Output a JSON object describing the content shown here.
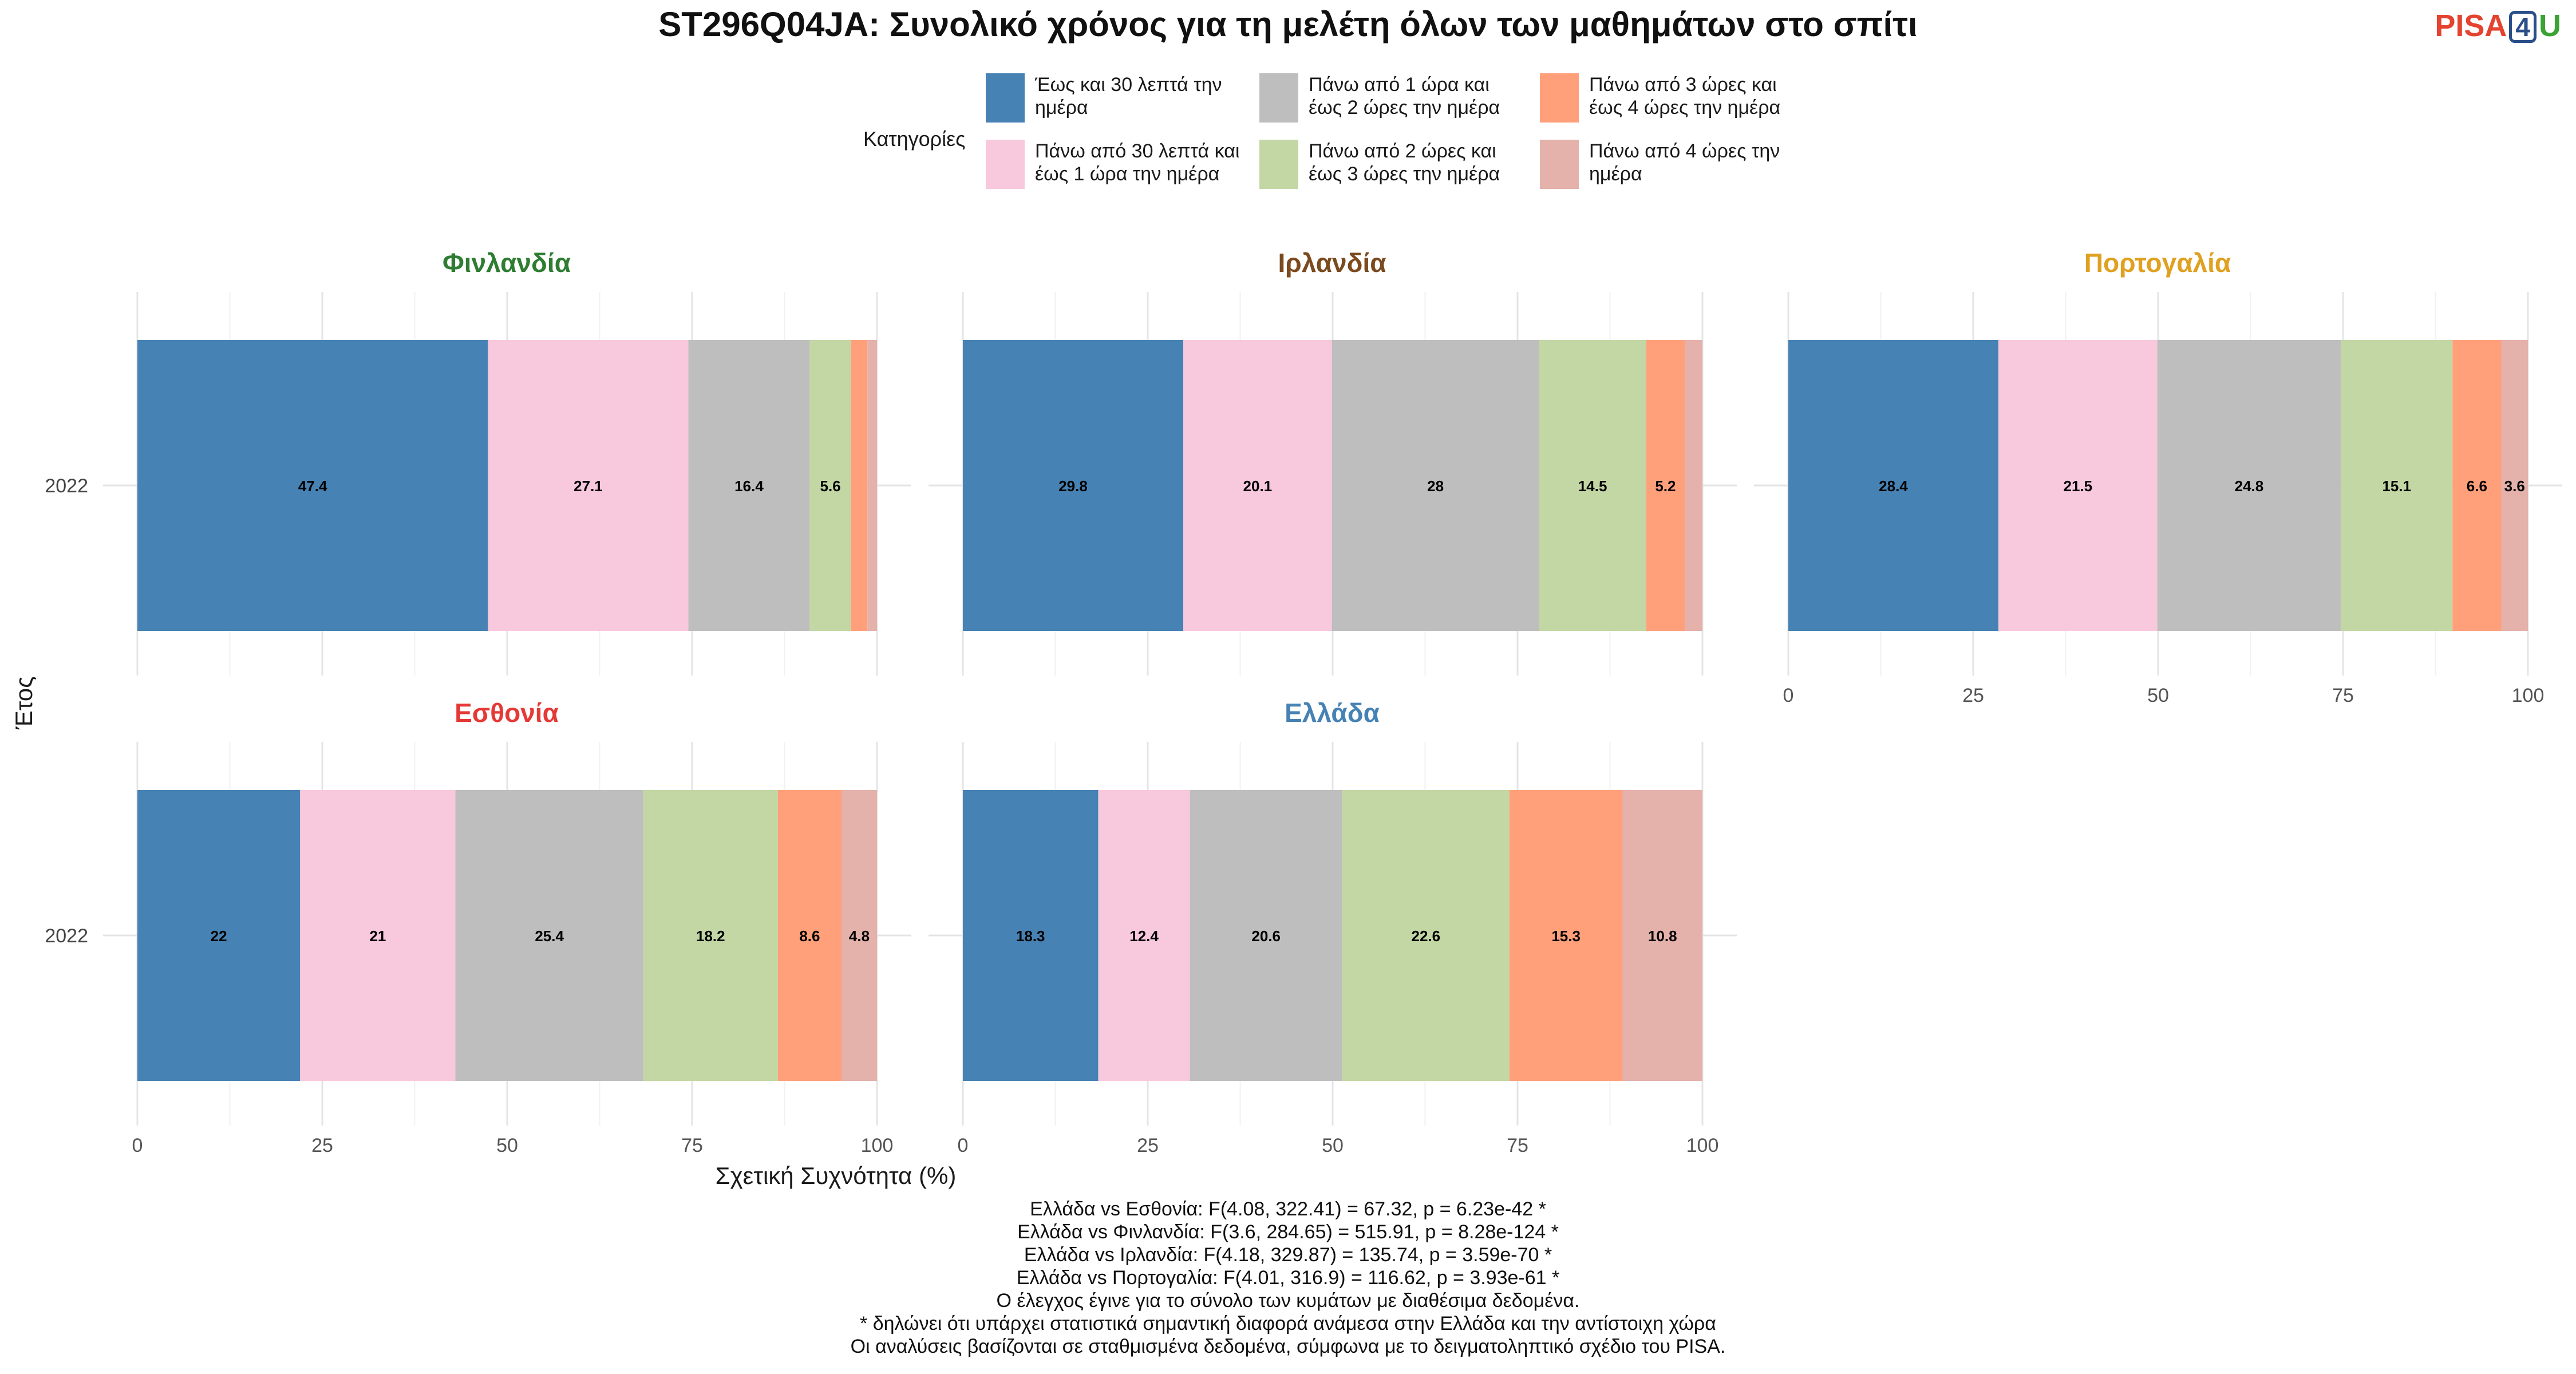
{
  "title": "ST296Q04JA: Συνολικό χρόνος για τη μελέτη όλων των μαθημάτων στο σπίτι",
  "logo": {
    "part1": "PISA",
    "part2": "4",
    "part3": "U"
  },
  "legend": {
    "title": "Κατηγορίες",
    "items": [
      {
        "label": "Έως και 30 λεπτά την ημέρα",
        "color": "#4682B4"
      },
      {
        "label": "Πάνω από 30 λεπτά και έως 1 ώρα την ημέρα",
        "color": "#F8C8DC"
      },
      {
        "label": "Πάνω από 1 ώρα και έως 2 ώρες την ημέρα",
        "color": "#BEBEBE"
      },
      {
        "label": "Πάνω από 2 ώρες και έως 3 ώρες την ημέρα",
        "color": "#C3D7A4"
      },
      {
        "label": "Πάνω από 3 ώρες και έως 4 ώρες την ημέρα",
        "color": "#FFA07A"
      },
      {
        "label": "Πάνω από 4 ώρες την ημέρα",
        "color": "#E4B1AB"
      }
    ]
  },
  "chart_data": {
    "type": "bar",
    "orientation": "horizontal",
    "stacked": true,
    "ylabel": "Έτος",
    "xlabel": "Σχετική Συχνότητα (%)",
    "xlim": [
      0,
      100
    ],
    "xticks": [
      "0",
      "25",
      "50",
      "75",
      "100"
    ],
    "grid": true,
    "legend_position": "top",
    "panels": [
      {
        "country": "Φινλανδία",
        "title_color": "#2E7D32",
        "year": "2022",
        "values": [
          47.4,
          27.1,
          16.4,
          5.6,
          2.2,
          1.3
        ],
        "labels": [
          "47.4",
          "27.1",
          "16.4",
          "5.6",
          "",
          ""
        ]
      },
      {
        "country": "Ιρλανδία",
        "title_color": "#7B4A1E",
        "year": "2022",
        "values": [
          29.8,
          20.1,
          28,
          14.5,
          5.2,
          2.4
        ],
        "labels": [
          "29.8",
          "20.1",
          "28",
          "14.5",
          "5.2",
          ""
        ]
      },
      {
        "country": "Πορτογαλία",
        "title_color": "#E0A020",
        "year": "2022",
        "values": [
          28.4,
          21.5,
          24.8,
          15.1,
          6.6,
          3.6
        ],
        "labels": [
          "28.4",
          "21.5",
          "24.8",
          "15.1",
          "6.6",
          "3.6"
        ]
      },
      {
        "country": "Εσθονία",
        "title_color": "#E53935",
        "year": "2022",
        "values": [
          22,
          21,
          25.4,
          18.2,
          8.6,
          4.8
        ],
        "labels": [
          "22",
          "21",
          "25.4",
          "18.2",
          "8.6",
          "4.8"
        ]
      },
      {
        "country": "Ελλάδα",
        "title_color": "#4682B4",
        "year": "2022",
        "values": [
          18.3,
          12.4,
          20.6,
          22.6,
          15.3,
          10.8
        ],
        "labels": [
          "18.3",
          "12.4",
          "20.6",
          "22.6",
          "15.3",
          "10.8"
        ]
      }
    ]
  },
  "notes": [
    "Ελλάδα vs Εσθονία: F(4.08, 322.41) = 67.32, p = 6.23e-42 *",
    "Ελλάδα vs Φινλανδία: F(3.6, 284.65) = 515.91, p = 8.28e-124 *",
    "Ελλάδα vs Ιρλανδία: F(4.18, 329.87) = 135.74, p = 3.59e-70 *",
    "Ελλάδα vs Πορτογαλία: F(4.01, 316.9) = 116.62, p = 3.93e-61 *",
    "Ο έλεγχος έγινε για το σύνολο των κυμάτων με διαθέσιμα δεδομένα.",
    "* δηλώνει ότι υπάρχει στατιστικά σημαντική διαφορά ανάμεσα στην Ελλάδα και την αντίστοιχη χώρα",
    "Οι αναλύσεις βασίζονται σε σταθμισμένα δεδομένα, σύμφωνα με το δειγματοληπτικό σχέδιο του PISA."
  ]
}
